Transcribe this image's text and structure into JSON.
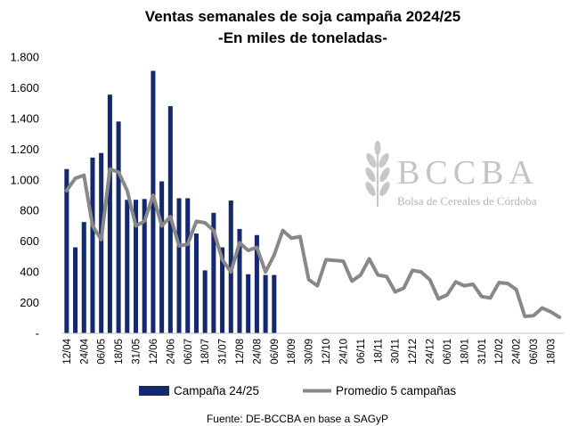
{
  "chart_data": {
    "type": "bar",
    "title": "Ventas semanales de soja campaña 2024/25",
    "subtitle": "-En miles de toneladas-",
    "source": "Fuente: DE-BCCBA en base a SAGyP",
    "logo": {
      "main": "BCCBA",
      "sub": "Bolsa de Cereales de Córdoba"
    },
    "ylim": [
      0,
      1800
    ],
    "yticks": [
      "-",
      "200",
      "400",
      "600",
      "800",
      "1.000",
      "1.200",
      "1.400",
      "1.600",
      "1.800"
    ],
    "x_tick_labels": [
      "12/04",
      "24/04",
      "06/05",
      "18/05",
      "31/05",
      "12/06",
      "24/06",
      "06/07",
      "18/07",
      "31/07",
      "12/08",
      "24/08",
      "06/09",
      "18/09",
      "30/09",
      "12/10",
      "24/10",
      "06/11",
      "18/11",
      "30/11",
      "12/12",
      "24/12",
      "06/01",
      "18/01",
      "31/01",
      "12/02",
      "24/02",
      "06/03",
      "18/03"
    ],
    "colors": {
      "bars": "#14286e",
      "line": "#888888"
    },
    "series": [
      {
        "name": "Campaña 24/25",
        "kind": "bar",
        "values": [
          1070,
          560,
          725,
          1145,
          1175,
          1555,
          1380,
          870,
          870,
          875,
          1710,
          990,
          1480,
          880,
          880,
          650,
          410,
          785,
          560,
          865,
          680,
          385,
          640,
          380,
          380
        ]
      },
      {
        "name": "Promedio 5 campañas",
        "kind": "line",
        "values": [
          930,
          1010,
          1030,
          700,
          610,
          1070,
          1050,
          930,
          700,
          730,
          900,
          700,
          760,
          570,
          580,
          730,
          720,
          670,
          480,
          400,
          590,
          540,
          560,
          400,
          510,
          670,
          620,
          630,
          350,
          310,
          480,
          475,
          470,
          340,
          380,
          485,
          380,
          370,
          270,
          295,
          410,
          400,
          350,
          225,
          250,
          335,
          310,
          320,
          240,
          230,
          330,
          325,
          285,
          110,
          115,
          165,
          140,
          105
        ]
      }
    ]
  }
}
